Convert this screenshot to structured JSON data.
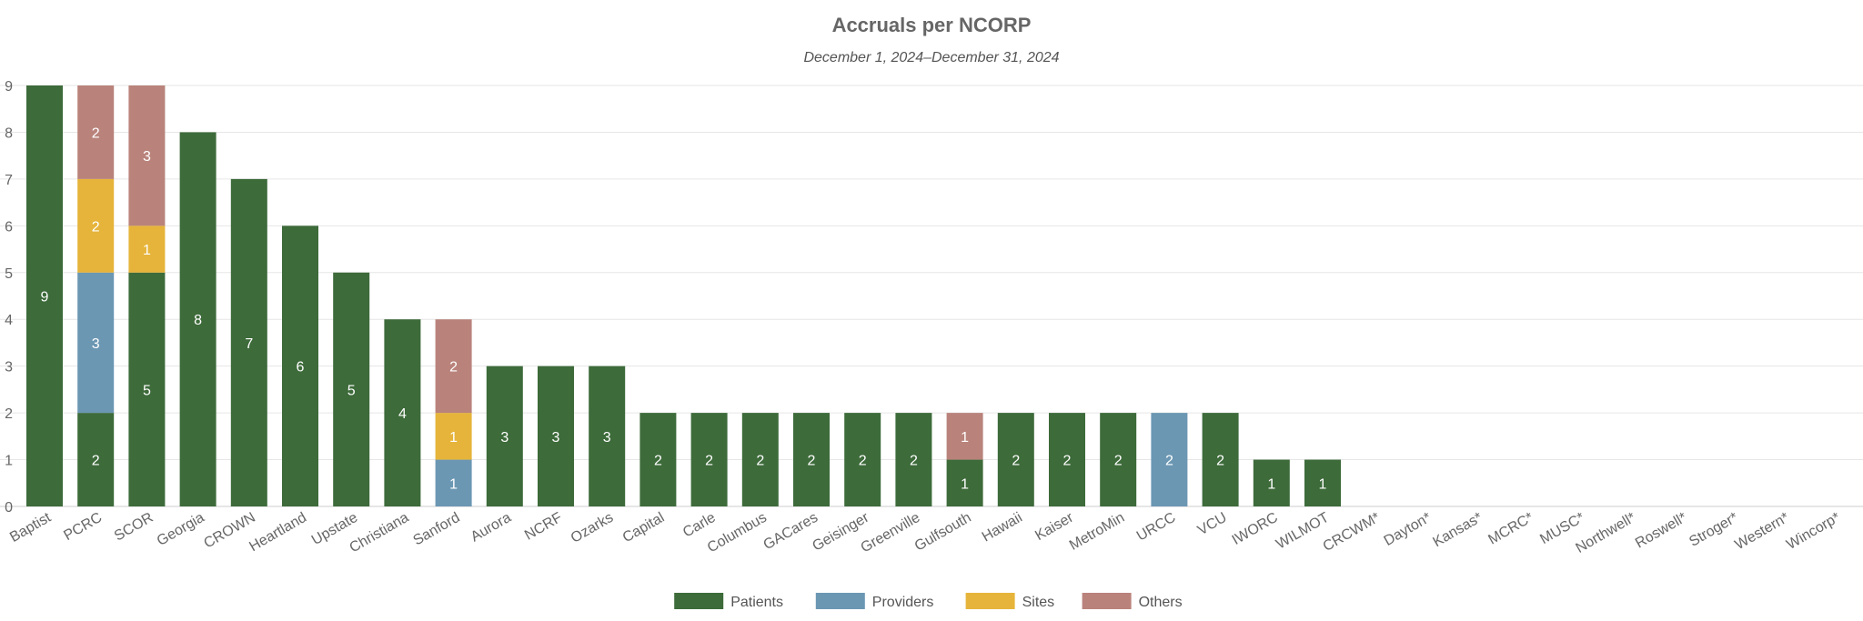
{
  "chart_data": {
    "type": "bar",
    "stacked": true,
    "title": "Accruals per NCORP",
    "subtitle": "December 1, 2024–December 31, 2024",
    "xlabel": "",
    "ylabel": "",
    "ylim": [
      0,
      9
    ],
    "y_ticks": [
      0,
      1,
      2,
      3,
      4,
      5,
      6,
      7,
      8,
      9
    ],
    "grid": true,
    "legend_position": "bottom",
    "categories": [
      "Baptist",
      "PCRC",
      "SCOR",
      "Georgia",
      "CROWN",
      "Heartland",
      "Upstate",
      "Christiana",
      "Sanford",
      "Aurora",
      "NCRF",
      "Ozarks",
      "Capital",
      "Carle",
      "Columbus",
      "GACares",
      "Geisinger",
      "Greenville",
      "Gulfsouth",
      "Hawaii",
      "Kaiser",
      "MetroMin",
      "URCC",
      "VCU",
      "IWORC",
      "WILMOT",
      "CRCWM*",
      "Dayton*",
      "Kansas*",
      "MCRC*",
      "MUSC*",
      "Northwell*",
      "Roswell*",
      "Stroger*",
      "Western*",
      "Wincorp*"
    ],
    "series": [
      {
        "name": "Patients",
        "color": "#3d6b3a",
        "values": [
          9,
          2,
          5,
          8,
          7,
          6,
          5,
          4,
          0,
          3,
          3,
          3,
          2,
          2,
          2,
          2,
          2,
          2,
          1,
          2,
          2,
          2,
          0,
          2,
          1,
          1,
          0,
          0,
          0,
          0,
          0,
          0,
          0,
          0,
          0,
          0
        ]
      },
      {
        "name": "Providers",
        "color": "#6b97b3",
        "values": [
          0,
          3,
          0,
          0,
          0,
          0,
          0,
          0,
          1,
          0,
          0,
          0,
          0,
          0,
          0,
          0,
          0,
          0,
          0,
          0,
          0,
          0,
          2,
          0,
          0,
          0,
          0,
          0,
          0,
          0,
          0,
          0,
          0,
          0,
          0,
          0
        ]
      },
      {
        "name": "Sites",
        "color": "#e6b43a",
        "values": [
          0,
          2,
          1,
          0,
          0,
          0,
          0,
          0,
          1,
          0,
          0,
          0,
          0,
          0,
          0,
          0,
          0,
          0,
          0,
          0,
          0,
          0,
          0,
          0,
          0,
          0,
          0,
          0,
          0,
          0,
          0,
          0,
          0,
          0,
          0,
          0
        ]
      },
      {
        "name": "Others",
        "color": "#b9837b",
        "values": [
          0,
          2,
          3,
          0,
          0,
          0,
          0,
          0,
          2,
          0,
          0,
          0,
          0,
          0,
          0,
          0,
          0,
          0,
          1,
          0,
          0,
          0,
          0,
          0,
          0,
          0,
          0,
          0,
          0,
          0,
          0,
          0,
          0,
          0,
          0,
          0
        ]
      }
    ]
  }
}
